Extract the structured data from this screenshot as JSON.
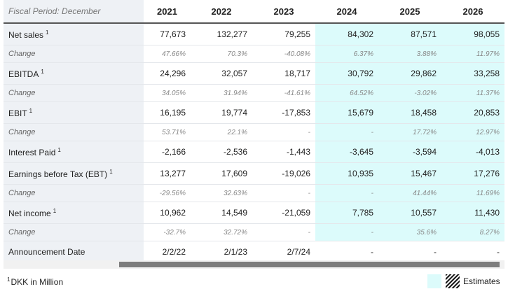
{
  "header": {
    "title": "Fiscal Period: December",
    "years": [
      "2021",
      "2022",
      "2023",
      "2024",
      "2025",
      "2026"
    ],
    "estimate_from": 3
  },
  "metrics": [
    {
      "label": "Net sales",
      "sup": "1",
      "values": [
        "77,673",
        "132,277",
        "79,255",
        "84,302",
        "87,571",
        "98,055"
      ],
      "change": {
        "label": "Change",
        "values": [
          "47.66%",
          "70.3%",
          "-40.08%",
          "6.37%",
          "3.88%",
          "11.97%"
        ]
      }
    },
    {
      "label": "EBITDA",
      "sup": "1",
      "values": [
        "24,296",
        "32,057",
        "18,717",
        "30,792",
        "29,862",
        "33,258"
      ],
      "change": {
        "label": "Change",
        "values": [
          "34.05%",
          "31.94%",
          "-41.61%",
          "64.52%",
          "-3.02%",
          "11.37%"
        ]
      }
    },
    {
      "label": "EBIT",
      "sup": "1",
      "values": [
        "16,195",
        "19,774",
        "-17,853",
        "15,679",
        "18,458",
        "20,853"
      ],
      "change": {
        "label": "Change",
        "values": [
          "53.71%",
          "22.1%",
          "-",
          "-",
          "17.72%",
          "12.97%"
        ]
      }
    },
    {
      "label": "Interest Paid",
      "sup": "1",
      "values": [
        "-2,166",
        "-2,536",
        "-1,443",
        "-3,645",
        "-3,594",
        "-4,013"
      ]
    },
    {
      "label": "Earnings before Tax (EBT)",
      "sup": "1",
      "values": [
        "13,277",
        "17,609",
        "-19,026",
        "10,935",
        "15,467",
        "17,276"
      ],
      "change": {
        "label": "Change",
        "values": [
          "-29.56%",
          "32.63%",
          "-",
          "-",
          "41.44%",
          "11.69%"
        ]
      }
    },
    {
      "label": "Net income",
      "sup": "1",
      "values": [
        "10,962",
        "14,549",
        "-21,059",
        "7,785",
        "10,557",
        "11,430"
      ],
      "change": {
        "label": "Change",
        "values": [
          "-32.7%",
          "32.72%",
          "-",
          "-",
          "35.6%",
          "8.27%"
        ]
      }
    },
    {
      "label": "Announcement Date",
      "values": [
        "2/2/22",
        "2/1/23",
        "2/7/24",
        "-",
        "-",
        "-"
      ]
    }
  ],
  "footnote": {
    "mark": "1",
    "text": "DKK in Million"
  },
  "legend": "Estimates"
}
